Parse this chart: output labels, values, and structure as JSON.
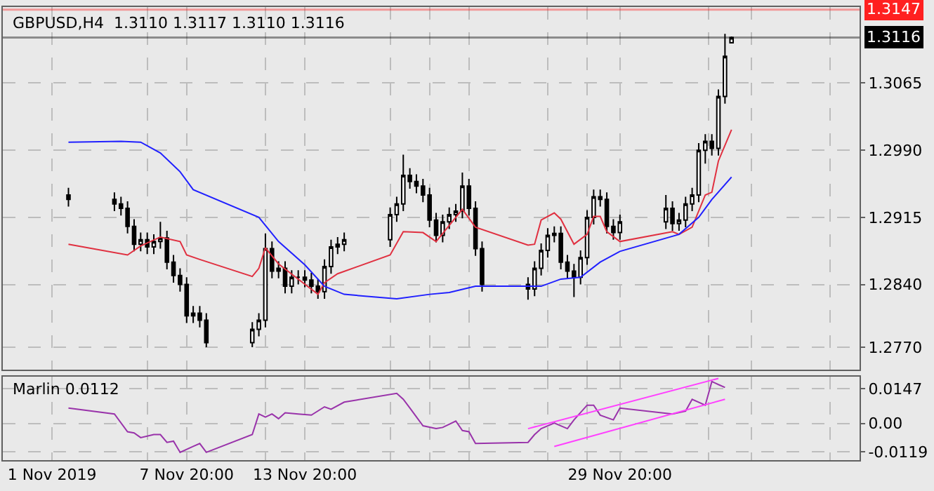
{
  "chart_data": [
    {
      "type": "candlestick",
      "title": "GBPUSD,H4  1.3110 1.3117 1.3110 1.3116",
      "x": [
        "2019-11-01T20:00",
        "2019-11-04T04:00",
        "2019-11-04T12:00",
        "2019-11-04T20:00",
        "2019-11-05T04:00",
        "2019-11-05T12:00",
        "2019-11-05T20:00",
        "2019-11-06T04:00",
        "2019-11-06T12:00",
        "2019-11-06T20:00",
        "2019-11-07T04:00",
        "2019-11-07T12:00",
        "2019-11-07T20:00",
        "2019-11-08T04:00",
        "2019-11-08T12:00",
        "2019-11-08T20:00",
        "2019-11-11T04:00",
        "2019-11-11T12:00",
        "2019-11-11T20:00",
        "2019-11-12T04:00",
        "2019-11-12T12:00",
        "2019-11-12T20:00",
        "2019-11-13T04:00",
        "2019-11-13T12:00",
        "2019-11-13T20:00",
        "2019-11-14T04:00",
        "2019-11-14T12:00",
        "2019-11-14T20:00",
        "2019-11-15T04:00",
        "2019-11-15T12:00",
        "2019-11-15T20:00",
        "2019-11-18T04:00",
        "2019-11-18T12:00",
        "2019-11-18T20:00",
        "2019-11-19T04:00",
        "2019-11-19T12:00",
        "2019-11-19T20:00",
        "2019-11-20T04:00",
        "2019-11-20T12:00",
        "2019-11-20T20:00",
        "2019-11-21T04:00",
        "2019-11-21T12:00",
        "2019-11-21T20:00",
        "2019-11-22T04:00",
        "2019-11-22T12:00",
        "2019-11-22T20:00",
        "2019-11-25T04:00",
        "2019-11-25T12:00",
        "2019-11-25T20:00",
        "2019-11-26T04:00",
        "2019-11-26T12:00",
        "2019-11-26T20:00",
        "2019-11-27T04:00",
        "2019-11-27T12:00",
        "2019-11-27T20:00",
        "2019-11-28T04:00",
        "2019-11-28T12:00",
        "2019-11-28T20:00",
        "2019-11-29T04:00",
        "2019-11-29T12:00",
        "2019-11-29T20:00",
        "2019-12-02T04:00",
        "2019-12-02T12:00",
        "2019-12-02T20:00",
        "2019-12-03T04:00",
        "2019-12-03T12:00",
        "2019-12-03T20:00",
        "2019-12-04T04:00",
        "2019-12-04T12:00",
        "2019-12-04T20:00",
        "2019-12-05T04:00",
        "2019-12-05T12:00"
      ],
      "ohlc": [
        [
          1.294,
          1.2948,
          1.2927,
          1.2935
        ],
        [
          1.2935,
          1.2943,
          1.2922,
          1.293
        ],
        [
          1.293,
          1.2938,
          1.2917,
          1.2925
        ],
        [
          1.2925,
          1.2933,
          1.2897,
          1.2905
        ],
        [
          1.2905,
          1.2913,
          1.2877,
          1.2885
        ],
        [
          1.2885,
          1.2898,
          1.2877,
          1.289
        ],
        [
          1.289,
          1.2898,
          1.2874,
          1.2882
        ],
        [
          1.2882,
          1.2896,
          1.2874,
          1.2888
        ],
        [
          1.2888,
          1.291,
          1.288,
          1.2892
        ],
        [
          1.2892,
          1.29,
          1.2857,
          1.2865
        ],
        [
          1.2865,
          1.2873,
          1.2842,
          1.285
        ],
        [
          1.285,
          1.2858,
          1.2832,
          1.284
        ],
        [
          1.284,
          1.2848,
          1.2797,
          1.2805
        ],
        [
          1.2805,
          1.2816,
          1.2797,
          1.2808
        ],
        [
          1.2808,
          1.2816,
          1.2792,
          1.28
        ],
        [
          1.28,
          1.2808,
          1.277,
          1.2775
        ],
        [
          1.2775,
          1.2798,
          1.277,
          1.279
        ],
        [
          1.279,
          1.2808,
          1.2782,
          1.28
        ],
        [
          1.28,
          1.2897,
          1.2792,
          1.288
        ],
        [
          1.288,
          1.2888,
          1.2847,
          1.2855
        ],
        [
          1.2855,
          1.2866,
          1.2847,
          1.2858
        ],
        [
          1.2858,
          1.2866,
          1.283,
          1.2838
        ],
        [
          1.2838,
          1.2856,
          1.283,
          1.2848
        ],
        [
          1.2848,
          1.2856,
          1.284,
          1.2848
        ],
        [
          1.2848,
          1.2856,
          1.2837,
          1.2845
        ],
        [
          1.2845,
          1.2853,
          1.283,
          1.2838
        ],
        [
          1.2838,
          1.2846,
          1.2824,
          1.2832
        ],
        [
          1.2832,
          1.2868,
          1.2824,
          1.286
        ],
        [
          1.286,
          1.289,
          1.2852,
          1.2882
        ],
        [
          1.2882,
          1.2893,
          1.2874,
          1.2885
        ],
        [
          1.2885,
          1.2898,
          1.2877,
          1.289
        ],
        [
          1.289,
          1.2926,
          1.2882,
          1.2918
        ],
        [
          1.2918,
          1.2938,
          1.291,
          1.293
        ],
        [
          1.293,
          1.2985,
          1.2922,
          1.2962
        ],
        [
          1.2962,
          1.297,
          1.2947,
          1.2955
        ],
        [
          1.2955,
          1.2963,
          1.2942,
          1.295
        ],
        [
          1.295,
          1.2958,
          1.2932,
          1.294
        ],
        [
          1.294,
          1.2948,
          1.2904,
          1.2912
        ],
        [
          1.2912,
          1.292,
          1.2887,
          1.2895
        ],
        [
          1.2895,
          1.2918,
          1.2887,
          1.291
        ],
        [
          1.291,
          1.2926,
          1.2902,
          1.2918
        ],
        [
          1.2918,
          1.293,
          1.291,
          1.2922
        ],
        [
          1.2922,
          1.2965,
          1.2914,
          1.295
        ],
        [
          1.295,
          1.2958,
          1.2917,
          1.2925
        ],
        [
          1.2925,
          1.2933,
          1.2872,
          1.288
        ],
        [
          1.288,
          1.2888,
          1.2832,
          1.284
        ],
        [
          1.284,
          1.2848,
          1.2823,
          1.2835
        ],
        [
          1.2835,
          1.2866,
          1.2827,
          1.2858
        ],
        [
          1.2858,
          1.2886,
          1.285,
          1.2878
        ],
        [
          1.2878,
          1.2903,
          1.287,
          1.2895
        ],
        [
          1.2895,
          1.2905,
          1.2887,
          1.2897
        ],
        [
          1.2897,
          1.2905,
          1.2857,
          1.2865
        ],
        [
          1.2865,
          1.2873,
          1.2847,
          1.2855
        ],
        [
          1.2855,
          1.2863,
          1.2826,
          1.2848
        ],
        [
          1.2848,
          1.2878,
          1.284,
          1.287
        ],
        [
          1.287,
          1.2923,
          1.2862,
          1.2915
        ],
        [
          1.2915,
          1.2946,
          1.2907,
          1.2938
        ],
        [
          1.2938,
          1.2946,
          1.2927,
          1.2935
        ],
        [
          1.2935,
          1.2943,
          1.2897,
          1.2905
        ],
        [
          1.2905,
          1.2913,
          1.289,
          1.2898
        ],
        [
          1.2898,
          1.2918,
          1.289,
          1.291
        ],
        [
          1.291,
          1.294,
          1.2902,
          1.2925
        ],
        [
          1.2925,
          1.2933,
          1.29,
          1.2908
        ],
        [
          1.2908,
          1.292,
          1.29,
          1.2912
        ],
        [
          1.2912,
          1.2938,
          1.2904,
          1.293
        ],
        [
          1.293,
          1.2948,
          1.2922,
          1.294
        ],
        [
          1.294,
          1.2998,
          1.2932,
          1.299
        ],
        [
          1.299,
          1.3008,
          1.2975,
          1.3
        ],
        [
          1.3,
          1.3008,
          1.2984,
          1.2992
        ],
        [
          1.2992,
          1.3058,
          1.2984,
          1.305
        ],
        [
          1.305,
          1.312,
          1.3042,
          1.3095
        ],
        [
          1.311,
          1.3117,
          1.311,
          1.3116
        ]
      ],
      "series": [
        {
          "type": "line",
          "color": "#e03040",
          "x": [
            "2019-11-01T20:00",
            "2019-11-04T20:00",
            "2019-11-05T12:00",
            "2019-11-06T12:00",
            "2019-11-07T12:00",
            "2019-11-07T20:00",
            "2019-11-08T12:00",
            "2019-11-11T04:00",
            "2019-11-11T12:00",
            "2019-11-11T20:00",
            "2019-11-12T12:00",
            "2019-11-13T12:00",
            "2019-11-14T12:00",
            "2019-11-14T20:00",
            "2019-11-15T12:00",
            "2019-11-18T04:00",
            "2019-11-18T20:00",
            "2019-11-19T20:00",
            "2019-11-20T12:00",
            "2019-11-21T12:00",
            "2019-11-21T20:00",
            "2019-11-22T12:00",
            "2019-11-25T04:00",
            "2019-11-25T12:00",
            "2019-11-25T20:00",
            "2019-11-26T12:00",
            "2019-11-26T20:00",
            "2019-11-27T12:00",
            "2019-11-28T04:00",
            "2019-11-28T12:00",
            "2019-11-28T20:00",
            "2019-11-29T04:00",
            "2019-11-29T20:00",
            "2019-12-02T12:00",
            "2019-12-02T20:00",
            "2019-12-03T12:00",
            "2019-12-04T04:00",
            "2019-12-04T12:00",
            "2019-12-04T20:00",
            "2019-12-05T12:00"
          ],
          "values": [
            1.2885,
            1.2873,
            1.2883,
            1.2893,
            1.2888,
            1.2873,
            1.2868,
            1.2849,
            1.2858,
            1.2881,
            1.2863,
            1.2846,
            1.2829,
            1.2842,
            1.2852,
            1.2873,
            1.2899,
            1.2898,
            1.2888,
            1.2915,
            1.2924,
            1.2904,
            1.2884,
            1.2885,
            1.2912,
            1.292,
            1.2913,
            1.2885,
            1.2896,
            1.2916,
            1.2916,
            1.2899,
            1.2888,
            1.2899,
            1.2896,
            1.2904,
            1.294,
            1.2943,
            1.2978,
            1.3013
          ]
        },
        {
          "type": "line",
          "color": "#2020ff",
          "x": [
            "2019-11-01T20:00",
            "2019-11-04T12:00",
            "2019-11-05T12:00",
            "2019-11-06T12:00",
            "2019-11-07T12:00",
            "2019-11-08T04:00",
            "2019-11-11T12:00",
            "2019-11-12T12:00",
            "2019-11-13T20:00",
            "2019-11-14T20:00",
            "2019-11-15T20:00",
            "2019-11-18T12:00",
            "2019-11-20T04:00",
            "2019-11-21T04:00",
            "2019-11-22T12:00",
            "2019-11-22T20:00",
            "2019-11-25T20:00",
            "2019-11-26T20:00",
            "2019-11-27T20:00",
            "2019-11-28T20:00",
            "2019-11-29T20:00",
            "2019-12-02T20:00",
            "2019-12-03T20:00",
            "2019-12-04T12:00",
            "2019-12-05T12:00"
          ],
          "values": [
            1.2999,
            1.3,
            1.2999,
            1.2987,
            1.2966,
            1.2946,
            1.2915,
            1.2888,
            1.2862,
            1.2838,
            1.2829,
            1.2824,
            1.2829,
            1.2831,
            1.2838,
            1.2838,
            1.2838,
            1.2846,
            1.2848,
            1.2865,
            1.2877,
            1.2896,
            1.2915,
            1.2935,
            1.296
          ]
        }
      ],
      "xlim": [
        "2019-10-29T12:00",
        "2019-12-12T00:00"
      ],
      "xticks": [
        {
          "value": "2019-11-01T00:00",
          "label": null
        },
        {
          "value": "2019-11-05T20:00",
          "label": null
        },
        {
          "value": "2019-11-07T20:00",
          "label": null
        },
        {
          "value": "2019-11-11T20:00",
          "label": null
        },
        {
          "value": "2019-11-13T20:00",
          "label": null
        },
        {
          "value": "2019-11-18T04:00",
          "label": null
        },
        {
          "value": "2019-11-20T04:00",
          "label": null
        },
        {
          "value": "2019-11-22T04:00",
          "label": null
        },
        {
          "value": "2019-11-26T04:00",
          "label": null
        },
        {
          "value": "2019-11-28T04:00",
          "label": null
        },
        {
          "value": "2019-11-29T20:00",
          "label": null
        },
        {
          "value": "2019-12-04T08:00",
          "label": null
        },
        {
          "value": "2019-12-06T12:00",
          "label": null
        },
        {
          "value": "2019-12-10T12:00",
          "label": null
        }
      ],
      "ylim": [
        1.2745,
        1.315
      ],
      "yticks": [
        {
          "value": 1.277,
          "label": "1.2770"
        },
        {
          "value": 1.284,
          "label": "1.2840"
        },
        1.2915,
        {
          "value": 1.299,
          "label": "1.2990"
        },
        1.3065
      ],
      "ref_lines": [
        {
          "axis": "y",
          "value": 1.3147,
          "label": "1.3147",
          "color": "#ff2020"
        },
        {
          "axis": "y",
          "value": 1.3116,
          "label": "1.3116",
          "color": "#000000"
        }
      ],
      "grid": true,
      "tick_labels": "y"
    },
    {
      "type": "line",
      "title": "Marlin 0.0112",
      "series": [
        {
          "color": "#9933aa",
          "x": [
            "2019-11-01T20:00",
            "2019-11-04T04:00",
            "2019-11-04T20:00",
            "2019-11-05T04:00",
            "2019-11-05T12:00",
            "2019-11-06T04:00",
            "2019-11-06T12:00",
            "2019-11-06T20:00",
            "2019-11-07T04:00",
            "2019-11-07T12:00",
            "2019-11-08T04:00",
            "2019-11-08T12:00",
            "2019-11-08T20:00",
            "2019-11-11T04:00",
            "2019-11-11T12:00",
            "2019-11-11T20:00",
            "2019-11-12T04:00",
            "2019-11-12T12:00",
            "2019-11-12T20:00",
            "2019-11-13T12:00",
            "2019-11-14T04:00",
            "2019-11-14T20:00",
            "2019-11-15T04:00",
            "2019-11-15T20:00",
            "2019-11-18T12:00",
            "2019-11-18T20:00",
            "2019-11-19T04:00",
            "2019-11-19T20:00",
            "2019-11-20T12:00",
            "2019-11-20T20:00",
            "2019-11-21T12:00",
            "2019-11-21T20:00",
            "2019-11-22T04:00",
            "2019-11-22T12:00",
            "2019-11-25T04:00",
            "2019-11-25T12:00",
            "2019-11-25T20:00",
            "2019-11-26T12:00",
            "2019-11-27T04:00",
            "2019-11-27T12:00",
            "2019-11-28T04:00",
            "2019-11-28T12:00",
            "2019-11-28T20:00",
            "2019-11-29T12:00",
            "2019-11-29T20:00",
            "2019-12-02T12:00",
            "2019-12-03T04:00",
            "2019-12-03T12:00",
            "2019-12-04T04:00",
            "2019-12-04T12:00",
            "2019-12-04T20:00",
            "2019-12-05T04:00"
          ],
          "values": [
            0.0065,
            0.004,
            -0.0035,
            -0.004,
            -0.006,
            -0.0047,
            -0.0047,
            -0.008,
            -0.0075,
            -0.0122,
            -0.0097,
            -0.0085,
            -0.0122,
            -0.0047,
            0.004,
            0.0027,
            0.004,
            0.002,
            0.0045,
            0.004,
            0.0035,
            0.007,
            0.006,
            0.009,
            0.0127,
            0.0102,
            0.0065,
            -0.001,
            -0.0022,
            -0.0017,
            0.001,
            -0.003,
            -0.0035,
            -0.0085,
            -0.008,
            -0.0047,
            -0.0022,
            0.0002,
            -0.0022,
            0.0015,
            0.0077,
            0.0077,
            0.0035,
            0.0015,
            0.0065,
            0.004,
            0.0052,
            0.0102,
            0.0077,
            0.0177,
            0.0164,
            0.0152
          ]
        },
        {
          "color": "#ff40ff",
          "x": [
            "2019-11-25T04:00",
            "2019-12-04T20:00"
          ],
          "values": [
            -0.0022,
            0.019
          ]
        },
        {
          "color": "#ff40ff",
          "x": [
            "2019-11-26T12:00",
            "2019-12-05T04:00"
          ],
          "values": [
            -0.0097,
            0.0102
          ]
        }
      ],
      "xlim": [
        "2019-10-29T12:00",
        "2019-12-12T00:00"
      ],
      "xticks": [
        {
          "value": "2019-11-01T00:00",
          "label": "1 Nov 2019"
        },
        {
          "value": "2019-11-05T20:00",
          "label": null
        },
        {
          "value": "2019-11-07T20:00",
          "label": "7 Nov 20:00"
        },
        {
          "value": "2019-11-11T20:00",
          "label": null
        },
        {
          "value": "2019-11-13T20:00",
          "label": "13 Nov 20:00"
        },
        {
          "value": "2019-11-18T04:00",
          "label": null
        },
        {
          "value": "2019-11-20T04:00",
          "label": null
        },
        {
          "value": "2019-11-22T04:00",
          "label": null
        },
        {
          "value": "2019-11-26T04:00",
          "label": null
        },
        {
          "value": "2019-11-28T04:00",
          "label": null
        },
        {
          "value": "2019-11-29T20:00",
          "label": "29 Nov 20:00"
        },
        {
          "value": "2019-12-04T08:00",
          "label": null
        },
        {
          "value": "2019-12-06T12:00",
          "label": null
        },
        {
          "value": "2019-12-10T12:00",
          "label": null
        }
      ],
      "ylim": [
        -0.0155,
        0.0197
      ],
      "yticks": [
        -0.0119,
        {
          "value": 0,
          "label": "0.00"
        },
        0.0147
      ],
      "grid": true
    }
  ]
}
